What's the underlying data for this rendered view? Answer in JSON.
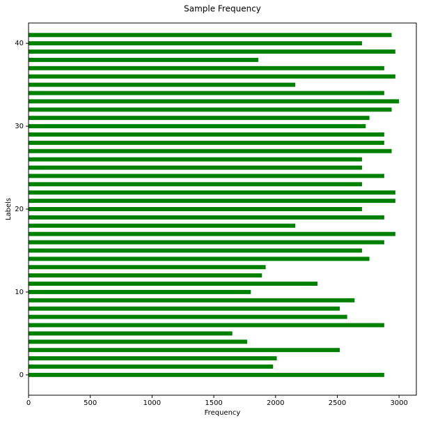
{
  "chart_data": {
    "type": "barh",
    "title": "Sample Frequency",
    "xlabel": "Frequency",
    "ylabel": "Labels",
    "y": [
      0,
      1,
      2,
      3,
      4,
      5,
      6,
      7,
      8,
      9,
      10,
      11,
      12,
      13,
      14,
      15,
      16,
      17,
      18,
      19,
      20,
      21,
      22,
      23,
      24,
      25,
      26,
      27,
      28,
      29,
      30,
      31,
      32,
      33,
      34,
      35,
      36,
      37,
      38,
      39,
      40,
      41
    ],
    "values": [
      2880,
      1980,
      2010,
      2520,
      1770,
      1650,
      2880,
      2580,
      2520,
      2640,
      1800,
      2340,
      1890,
      1920,
      2760,
      2700,
      2880,
      2970,
      2160,
      2880,
      2700,
      2970,
      2970,
      2700,
      2880,
      2700,
      2700,
      2940,
      2880,
      2880,
      2730,
      2760,
      2940,
      3000,
      2880,
      2160,
      2970,
      2880,
      1860,
      2970,
      2700,
      2940
    ],
    "color": "#008000",
    "xlim": [
      0,
      3140
    ],
    "xticks": [
      0,
      500,
      1000,
      1500,
      2000,
      2500,
      3000
    ],
    "ylim": [
      -2.45,
      42.45
    ],
    "yticks": [
      0,
      10,
      20,
      30,
      40
    ],
    "grid": false
  }
}
